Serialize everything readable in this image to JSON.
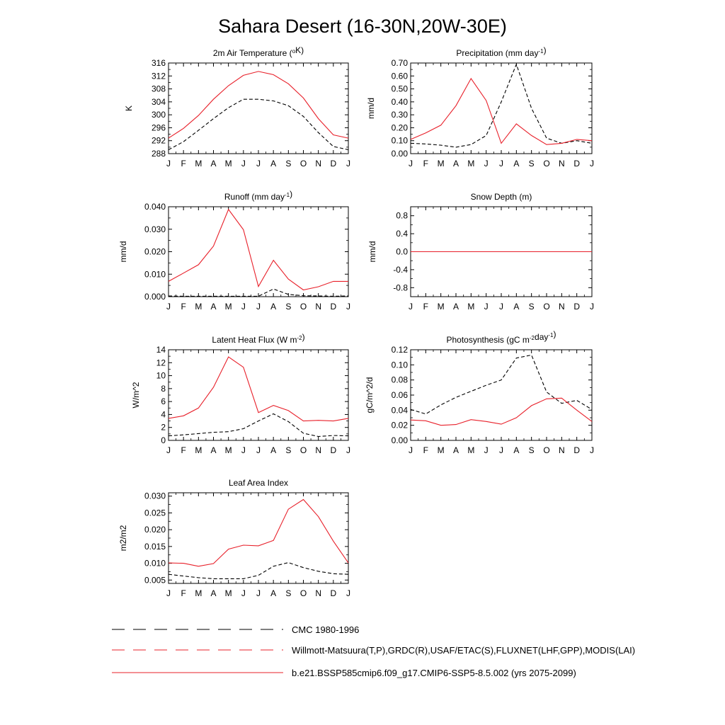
{
  "figure_title": "Sahara Desert (16-30N,20W-30E)",
  "months": [
    "J",
    "F",
    "M",
    "A",
    "M",
    "J",
    "J",
    "A",
    "S",
    "O",
    "N",
    "D",
    "J"
  ],
  "colors": {
    "model": "#e8202a",
    "obs": "#000000",
    "obs_alt": "#e8202a"
  },
  "legend": [
    {
      "label": "CMC 1980-1996",
      "style": "dashed-black"
    },
    {
      "label": "Willmott-Matsuura(T,P),GRDC(R),USAF/ETAC(S),FLUXNET(LHF,GPP),MODIS(LAI)",
      "style": "dashed-red"
    },
    {
      "label": "b.e21.BSSP585cmip6.f09_g17.CMIP6-SSP5-8.5.002 (yrs 2075-2099)",
      "style": "solid-red"
    }
  ],
  "chart_data": [
    {
      "type": "line",
      "title": "2m Air Temperature (",
      "title_sup": "o",
      "title_after": "K)",
      "title_sup2": "",
      "title_after2": "",
      "ylabel": "K",
      "ylim": [
        288,
        316
      ],
      "yticks": [
        "288",
        "292",
        "296",
        "300",
        "304",
        "308",
        "312",
        "316"
      ],
      "ytick_values": [
        288,
        292,
        296,
        300,
        304,
        308,
        312,
        316
      ],
      "x": [
        "J",
        "F",
        "M",
        "A",
        "M",
        "J",
        "J",
        "A",
        "S",
        "O",
        "N",
        "D",
        "J"
      ],
      "series": [
        {
          "style": "solid",
          "color": "#e8202a",
          "values": [
            292.8,
            295.8,
            299.8,
            304.8,
            309.0,
            312.2,
            313.4,
            312.4,
            309.6,
            305.2,
            298.8,
            293.8,
            292.8
          ]
        },
        {
          "style": "dashed",
          "color": "#000000",
          "values": [
            289.2,
            291.7,
            295.2,
            298.8,
            302.2,
            304.8,
            304.8,
            304.3,
            302.8,
            299.5,
            294.5,
            290.2,
            289.2
          ]
        }
      ]
    },
    {
      "type": "line",
      "title": "Precipitation (mm day",
      "title_sup": "-1",
      "title_after": ")",
      "title_sup2": "",
      "title_after2": "",
      "ylabel": "mm/d",
      "ylim": [
        0,
        0.7
      ],
      "yticks": [
        "0.00",
        "0.10",
        "0.20",
        "0.30",
        "0.40",
        "0.50",
        "0.60",
        "0.70"
      ],
      "ytick_values": [
        0,
        0.1,
        0.2,
        0.3,
        0.4,
        0.5,
        0.6,
        0.7
      ],
      "x": [
        "J",
        "F",
        "M",
        "A",
        "M",
        "J",
        "J",
        "A",
        "S",
        "O",
        "N",
        "D",
        "J"
      ],
      "series": [
        {
          "style": "solid",
          "color": "#e8202a",
          "values": [
            0.11,
            0.16,
            0.22,
            0.37,
            0.58,
            0.41,
            0.08,
            0.23,
            0.14,
            0.07,
            0.08,
            0.11,
            0.1
          ]
        },
        {
          "style": "dashed",
          "color": "#000000",
          "values": [
            0.08,
            0.075,
            0.065,
            0.05,
            0.07,
            0.14,
            0.4,
            0.69,
            0.35,
            0.12,
            0.08,
            0.1,
            0.08
          ]
        }
      ]
    },
    {
      "type": "line",
      "title": "Runoff (mm day",
      "title_sup": "-1",
      "title_after": ")",
      "title_sup2": "",
      "title_after2": "",
      "ylabel": "mm/d",
      "ylim": [
        0,
        0.04
      ],
      "yticks": [
        "0.000",
        "0.010",
        "0.020",
        "0.030",
        "0.040"
      ],
      "ytick_values": [
        0,
        0.01,
        0.02,
        0.03,
        0.04
      ],
      "x": [
        "J",
        "F",
        "M",
        "A",
        "M",
        "J",
        "J",
        "A",
        "S",
        "O",
        "N",
        "D",
        "J"
      ],
      "series": [
        {
          "style": "solid",
          "color": "#e8202a",
          "values": [
            0.0068,
            0.0105,
            0.0142,
            0.0225,
            0.0388,
            0.0298,
            0.0045,
            0.0162,
            0.0078,
            0.003,
            0.0044,
            0.0068,
            0.0068
          ]
        },
        {
          "style": "dashed",
          "color": "#000000",
          "values": [
            0.0003,
            0.0002,
            0.0002,
            0.0002,
            0.0002,
            0.0002,
            0.0002,
            0.0034,
            0.001,
            0.0004,
            0.0003,
            0.0002,
            0.0003
          ]
        }
      ]
    },
    {
      "type": "line",
      "title": "Snow Depth (m)",
      "title_sup": "",
      "title_after": "",
      "title_sup2": "",
      "title_after2": "",
      "ylabel": "mm/d",
      "ylim": [
        -1.0,
        1.0
      ],
      "yticks": [
        "-0.8",
        "-0.4",
        "0.0",
        "0.4",
        "0.8"
      ],
      "ytick_values": [
        -0.8,
        -0.4,
        0,
        0.4,
        0.8
      ],
      "x": [
        "J",
        "F",
        "M",
        "A",
        "M",
        "J",
        "J",
        "A",
        "S",
        "O",
        "N",
        "D",
        "J"
      ],
      "series": [
        {
          "style": "solid",
          "color": "#e8202a",
          "values": [
            0,
            0,
            0,
            0,
            0,
            0,
            0,
            0,
            0,
            0,
            0,
            0,
            0
          ]
        },
        {
          "style": "dashed",
          "color": "#000000",
          "values": [
            0,
            0,
            0,
            0,
            0,
            0,
            0,
            0,
            0,
            0,
            0,
            0,
            0
          ]
        }
      ]
    },
    {
      "type": "line",
      "title": "Latent Heat Flux (W m",
      "title_sup": "-2",
      "title_after": ")",
      "title_sup2": "",
      "title_after2": "",
      "ylabel": "W/m^2",
      "ylim": [
        0,
        14
      ],
      "yticks": [
        "0",
        "2",
        "4",
        "6",
        "8",
        "10",
        "12",
        "14"
      ],
      "ytick_values": [
        0,
        2,
        4,
        6,
        8,
        10,
        12,
        14
      ],
      "x": [
        "J",
        "F",
        "M",
        "A",
        "M",
        "J",
        "J",
        "A",
        "S",
        "O",
        "N",
        "D",
        "J"
      ],
      "series": [
        {
          "style": "solid",
          "color": "#e8202a",
          "values": [
            3.4,
            3.8,
            5.0,
            8.2,
            12.9,
            11.3,
            4.3,
            5.4,
            4.6,
            3.0,
            3.1,
            3.0,
            3.4
          ]
        },
        {
          "style": "dashed",
          "color": "#000000",
          "values": [
            0.7,
            0.85,
            1.05,
            1.25,
            1.35,
            1.8,
            3.0,
            4.1,
            2.9,
            1.1,
            0.6,
            0.75,
            0.7
          ]
        }
      ]
    },
    {
      "type": "line",
      "title": "Photosynthesis (gC m",
      "title_sup": "-2",
      "title_after": "day",
      "title_sup2": "-1",
      "title_after2": ")",
      "ylabel": "gC/m^2/d",
      "ylim": [
        0,
        0.12
      ],
      "yticks": [
        "0.00",
        "0.02",
        "0.04",
        "0.06",
        "0.08",
        "0.10",
        "0.12"
      ],
      "ytick_values": [
        0,
        0.02,
        0.04,
        0.06,
        0.08,
        0.1,
        0.12
      ],
      "x": [
        "J",
        "F",
        "M",
        "A",
        "M",
        "J",
        "J",
        "A",
        "S",
        "O",
        "N",
        "D",
        "J"
      ],
      "series": [
        {
          "style": "solid",
          "color": "#e8202a",
          "values": [
            0.027,
            0.026,
            0.02,
            0.021,
            0.0275,
            0.025,
            0.0215,
            0.03,
            0.046,
            0.055,
            0.056,
            0.04,
            0.025
          ]
        },
        {
          "style": "dashed",
          "color": "#000000",
          "values": [
            0.041,
            0.035,
            0.047,
            0.057,
            0.065,
            0.073,
            0.08,
            0.109,
            0.113,
            0.064,
            0.049,
            0.053,
            0.041
          ]
        }
      ]
    },
    {
      "type": "line",
      "title": "Leaf Area Index",
      "title_sup": "",
      "title_after": "",
      "title_sup2": "",
      "title_after2": "",
      "ylabel": "m2/m2",
      "ylim": [
        0.004,
        0.031
      ],
      "yticks": [
        "0.005",
        "0.010",
        "0.015",
        "0.020",
        "0.025",
        "0.030"
      ],
      "ytick_values": [
        0.005,
        0.01,
        0.015,
        0.02,
        0.025,
        0.03
      ],
      "x": [
        "J",
        "F",
        "M",
        "A",
        "M",
        "J",
        "J",
        "A",
        "S",
        "O",
        "N",
        "D",
        "J"
      ],
      "series": [
        {
          "style": "solid",
          "color": "#e8202a",
          "values": [
            0.0101,
            0.01,
            0.0091,
            0.0099,
            0.0142,
            0.0154,
            0.0152,
            0.0168,
            0.0261,
            0.029,
            0.0239,
            0.0166,
            0.0101
          ]
        },
        {
          "style": "dashed",
          "color": "#000000",
          "values": [
            0.0067,
            0.0062,
            0.0057,
            0.0054,
            0.0054,
            0.0054,
            0.0064,
            0.0091,
            0.0102,
            0.0087,
            0.0076,
            0.0069,
            0.0067
          ]
        }
      ]
    }
  ]
}
